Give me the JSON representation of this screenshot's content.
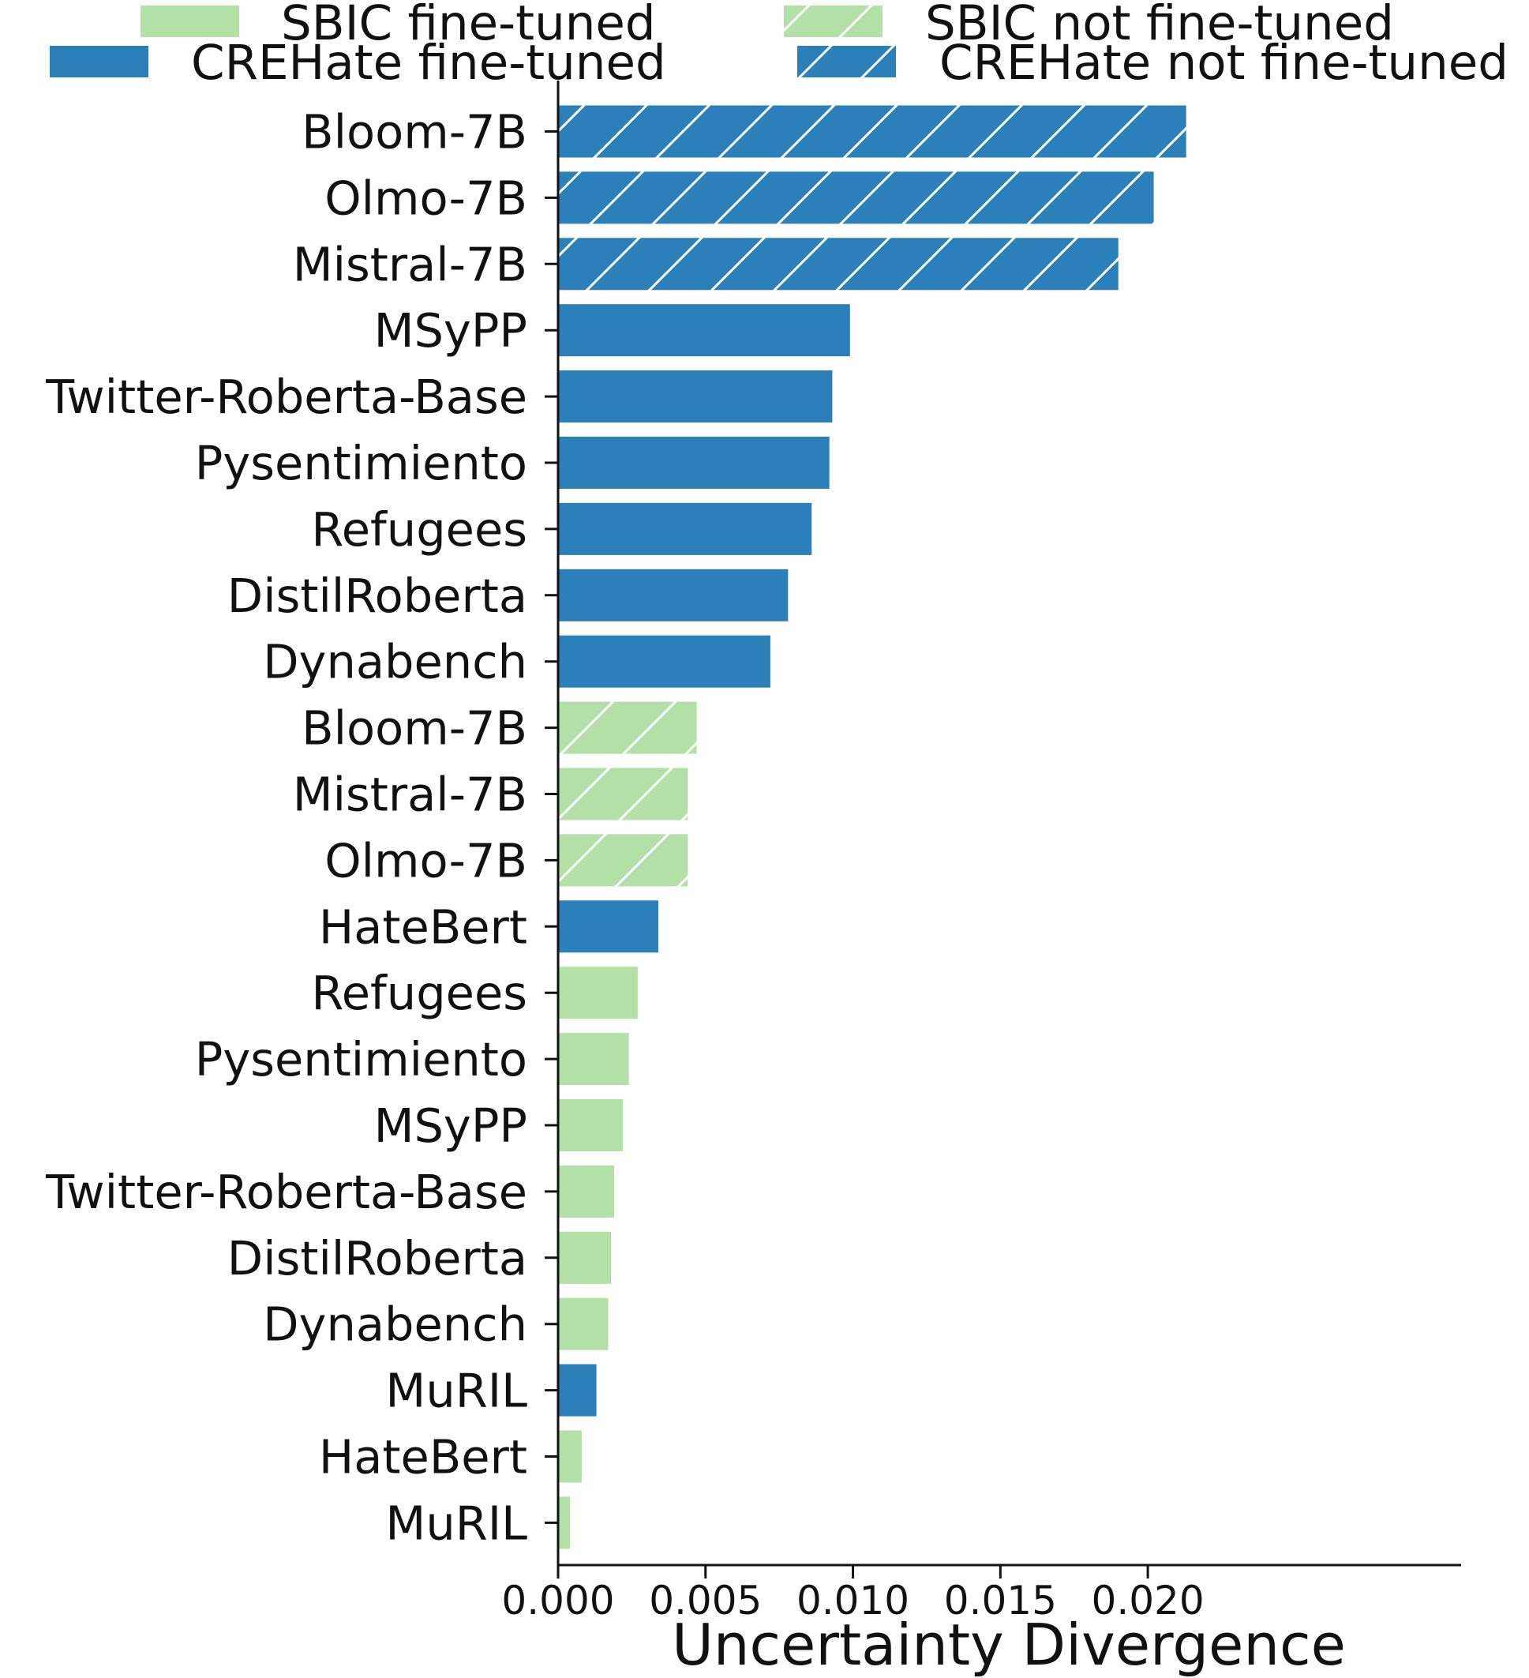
{
  "chart_data": {
    "type": "bar",
    "orientation": "horizontal",
    "xlabel": "Uncertainty Divergence",
    "ylabel": "",
    "xlim": [
      0,
      0.0225
    ],
    "xticks": [
      "0.000",
      "0.005",
      "0.010",
      "0.015",
      "0.020"
    ],
    "xtick_values": [
      0,
      0.005,
      0.01,
      0.015,
      0.02
    ],
    "grid": false,
    "legend_position": "top",
    "legend": [
      {
        "label": "SBIC fine-tuned",
        "color": "#b2e0a6",
        "hatched": false
      },
      {
        "label": "SBIC not fine-tuned",
        "color": "#b2e0a6",
        "hatched": true
      },
      {
        "label": "CREHate fine-tuned",
        "color": "#2c80b9",
        "hatched": false
      },
      {
        "label": "CREHate not fine-tuned",
        "color": "#2c80b9",
        "hatched": true
      }
    ],
    "bars": [
      {
        "label": "Bloom-7B",
        "value": 0.0213,
        "group": "CREHate not fine-tuned"
      },
      {
        "label": "Olmo-7B",
        "value": 0.0202,
        "group": "CREHate not fine-tuned"
      },
      {
        "label": "Mistral-7B",
        "value": 0.019,
        "group": "CREHate not fine-tuned"
      },
      {
        "label": "MSyPP",
        "value": 0.0099,
        "group": "CREHate fine-tuned"
      },
      {
        "label": "Twitter-Roberta-Base",
        "value": 0.0093,
        "group": "CREHate fine-tuned"
      },
      {
        "label": "Pysentimiento",
        "value": 0.0092,
        "group": "CREHate fine-tuned"
      },
      {
        "label": "Refugees",
        "value": 0.0086,
        "group": "CREHate fine-tuned"
      },
      {
        "label": "DistilRoberta",
        "value": 0.0078,
        "group": "CREHate fine-tuned"
      },
      {
        "label": "Dynabench",
        "value": 0.0072,
        "group": "CREHate fine-tuned"
      },
      {
        "label": "Bloom-7B",
        "value": 0.0047,
        "group": "SBIC not fine-tuned"
      },
      {
        "label": "Mistral-7B",
        "value": 0.0044,
        "group": "SBIC not fine-tuned"
      },
      {
        "label": "Olmo-7B",
        "value": 0.0044,
        "group": "SBIC not fine-tuned"
      },
      {
        "label": "HateBert",
        "value": 0.0034,
        "group": "CREHate fine-tuned"
      },
      {
        "label": "Refugees",
        "value": 0.0027,
        "group": "SBIC fine-tuned"
      },
      {
        "label": "Pysentimiento",
        "value": 0.0024,
        "group": "SBIC fine-tuned"
      },
      {
        "label": "MSyPP",
        "value": 0.0022,
        "group": "SBIC fine-tuned"
      },
      {
        "label": "Twitter-Roberta-Base",
        "value": 0.0019,
        "group": "SBIC fine-tuned"
      },
      {
        "label": "DistilRoberta",
        "value": 0.0018,
        "group": "SBIC fine-tuned"
      },
      {
        "label": "Dynabench",
        "value": 0.0017,
        "group": "SBIC fine-tuned"
      },
      {
        "label": "MuRIL",
        "value": 0.0013,
        "group": "CREHate fine-tuned"
      },
      {
        "label": "HateBert",
        "value": 0.0008,
        "group": "SBIC fine-tuned"
      },
      {
        "label": "MuRIL",
        "value": 0.0004,
        "group": "SBIC fine-tuned"
      }
    ]
  }
}
